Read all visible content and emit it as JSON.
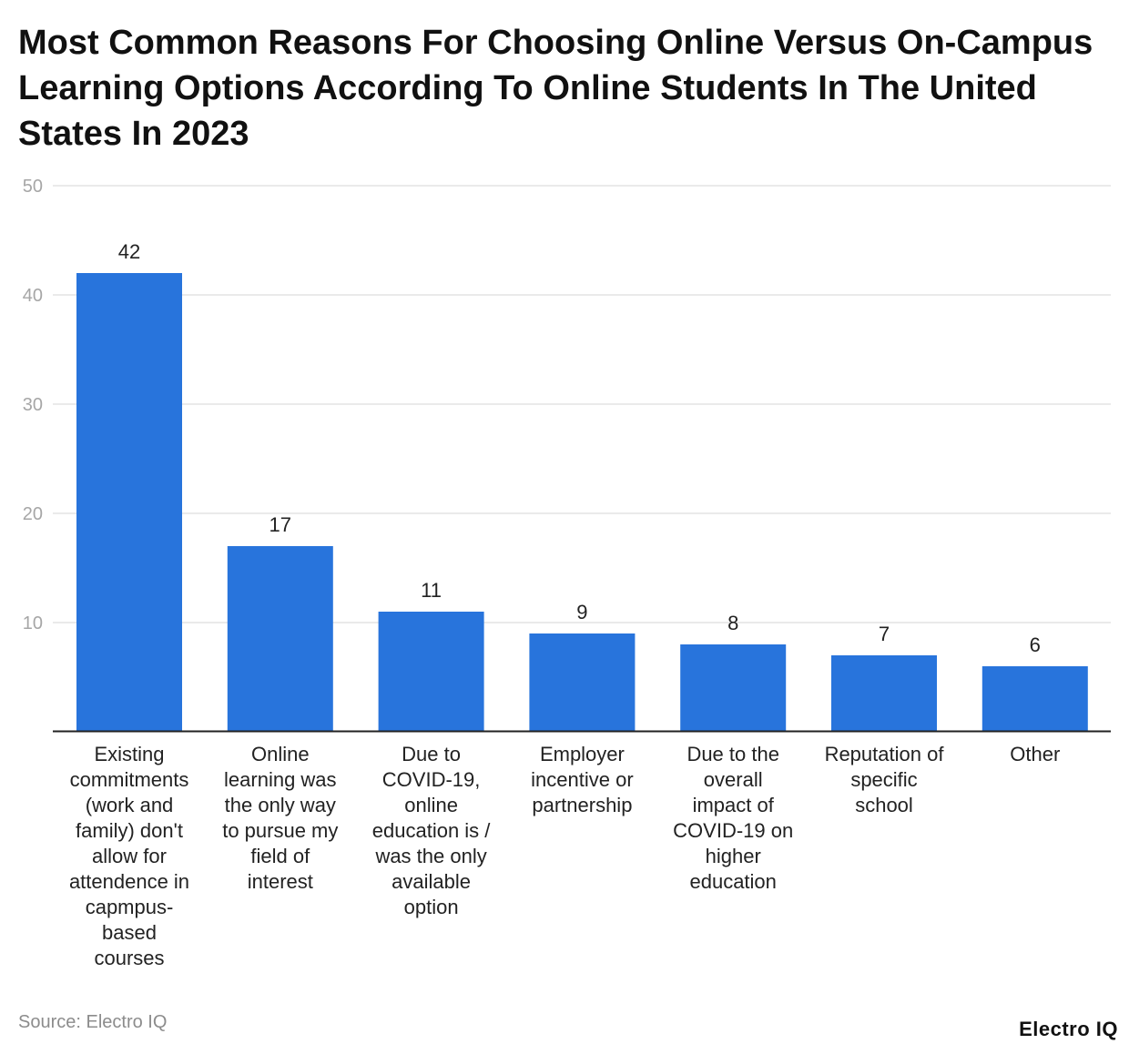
{
  "chart_data": {
    "type": "bar",
    "title": "Most Common Reasons For Choosing Online Versus On-Campus Learning Options According To Online Students In The United States In 2023",
    "xlabel": "",
    "ylabel": "",
    "ylim": [
      0,
      50
    ],
    "yticks": [
      "10",
      "20",
      "30",
      "40",
      "50"
    ],
    "grid": true,
    "bar_color": "#2874DC",
    "categories": [
      [
        "Existing",
        "commitments",
        "(work and",
        "family) don't",
        "allow for",
        "attendence in",
        "capmpus-",
        "based",
        "courses"
      ],
      [
        "Online",
        "learning was",
        "the only way",
        "to pursue my",
        "field of",
        "interest"
      ],
      [
        "Due to",
        "COVID-19,",
        "online",
        "education is /",
        "was the only",
        "available",
        "option"
      ],
      [
        "Employer",
        "incentive or",
        "partnership"
      ],
      [
        "Due to the",
        "overall",
        "impact of",
        "COVID-19 on",
        "higher",
        "education"
      ],
      [
        "Reputation of",
        "specific",
        "school"
      ],
      [
        "Other"
      ]
    ],
    "values": [
      42,
      17,
      11,
      9,
      8,
      7,
      6
    ]
  },
  "footer": {
    "source": "Source: Electro IQ",
    "brand": "Electro IQ"
  }
}
